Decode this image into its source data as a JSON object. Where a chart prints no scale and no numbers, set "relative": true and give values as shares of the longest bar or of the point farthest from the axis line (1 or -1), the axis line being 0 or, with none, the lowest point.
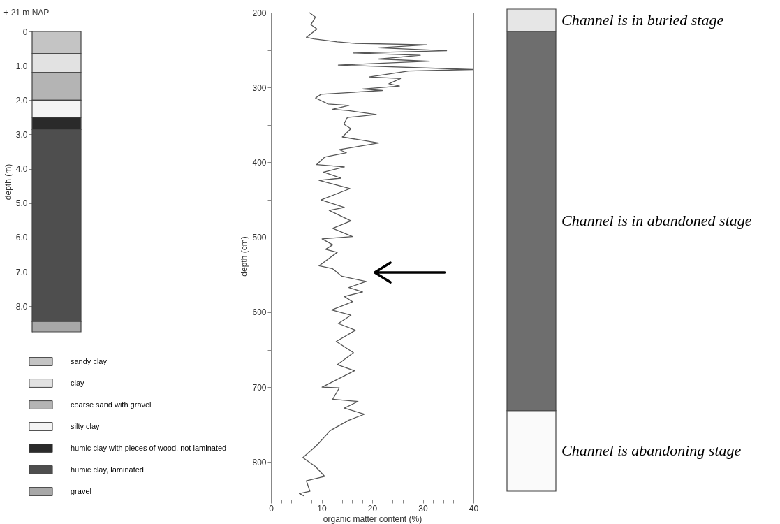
{
  "chart_data": [
    {
      "type": "bar",
      "stacked": true,
      "categories": [
        null
      ],
      "ylabel": "depth (m)",
      "annotations": [
        "+ 21 m NAP"
      ],
      "legend": "bottom",
      "tick_labels": "y",
      "ylim": [
        8.75,
        0
      ],
      "yticks": [
        0,
        {
          "value": 1,
          "label": "1.0"
        },
        {
          "value": 2,
          "label": "2.0"
        },
        {
          "value": 3,
          "label": "3.0"
        },
        {
          "value": 4,
          "label": "4.0"
        },
        {
          "value": 5,
          "label": "5.0"
        },
        {
          "value": 6,
          "label": "6.0"
        },
        {
          "value": 7,
          "label": "7.0"
        },
        {
          "value": 8,
          "label": "8.0"
        }
      ],
      "series": [
        {
          "name": "sandy clay",
          "color": "#c4c4c4",
          "values": [
            0.65
          ]
        },
        {
          "name": "clay",
          "color": "#e2e2e2",
          "values": [
            0.55
          ]
        },
        {
          "name": "coarse sand with gravel",
          "color": "#b4b4b4",
          "values": [
            0.8
          ]
        },
        {
          "name": "silty clay",
          "color": "#f4f4f4",
          "values": [
            0.5
          ]
        },
        {
          "name": "humic clay with pieces of wood, not laminated",
          "color": "#2a2a2a",
          "values": [
            0.35
          ]
        },
        {
          "name": "humic clay, laminated",
          "color": "#4e4e4e",
          "values": [
            5.6
          ]
        },
        {
          "name": "gravel",
          "color": "#a8a8a8",
          "values": [
            0.3
          ]
        }
      ]
    },
    {
      "type": "line",
      "xlabel": "organic matter content (%)",
      "ylabel": "depth (cm)",
      "xlim": [
        0,
        40
      ],
      "xticks": [
        0,
        {
          "value": 2,
          "label": null
        },
        {
          "value": 4,
          "label": null
        },
        {
          "value": 6,
          "label": null
        },
        {
          "value": 8,
          "label": null
        },
        10,
        {
          "value": 12,
          "label": null
        },
        {
          "value": 14,
          "label": null
        },
        {
          "value": 16,
          "label": null
        },
        {
          "value": 18,
          "label": null
        },
        20,
        {
          "value": 22,
          "label": null
        },
        {
          "value": 24,
          "label": null
        },
        {
          "value": 26,
          "label": null
        },
        {
          "value": 28,
          "label": null
        },
        30,
        {
          "value": 32,
          "label": null
        },
        {
          "value": 34,
          "label": null
        },
        {
          "value": 36,
          "label": null
        },
        {
          "value": 38,
          "label": null
        },
        40
      ],
      "ylim": [
        850,
        200
      ],
      "yticks": [
        200,
        {
          "value": 250,
          "label": null
        },
        300,
        {
          "value": 350,
          "label": null
        },
        400,
        {
          "value": 450,
          "label": null
        },
        500,
        {
          "value": 550,
          "label": null
        },
        600,
        {
          "value": 650,
          "label": null
        },
        700,
        {
          "value": 750,
          "label": null
        },
        800
      ],
      "series": [
        {
          "color": "#555555",
          "x": [
            7.6,
            8.8,
            7.9,
            9.1,
            7.0,
            8.5,
            13.1,
            16.3,
            30.8,
            21.3,
            34.7,
            16.3,
            29.5,
            21.3,
            31.3,
            13.3,
            39.9,
            27.2,
            19.4,
            25.6,
            23.3,
            25.4,
            18.1,
            22.0,
            9.9,
            8.8,
            11.3,
            15.4,
            12.2,
            15.4,
            20.8,
            15.1,
            14.4,
            15.8,
            14.1,
            21.3,
            13.5,
            14.9,
            10.6,
            9.0,
            14.5,
            10.4,
            13.8,
            9.5,
            15.6,
            9.9,
            14.5,
            11.5,
            15.8,
            12.2,
            16.1,
            10.1,
            12.2,
            10.8,
            13.1,
            9.5,
            12.2,
            14.0,
            18.8,
            15.4,
            18.1,
            14.5,
            16.1,
            12.0,
            15.8,
            13.3,
            16.7,
            12.9,
            16.3,
            13.1,
            16.5,
            10.1,
            13.5,
            12.2,
            17.2,
            14.5,
            18.5,
            15.4,
            11.7,
            9.0,
            6.3,
            8.8,
            10.6,
            7.0,
            7.7,
            5.6,
            6.5
          ],
          "values": [
            200,
            206,
            216,
            222,
            233,
            235,
            239,
            241,
            243,
            247,
            251,
            254,
            257,
            262,
            265,
            270,
            276,
            278,
            286,
            288,
            295,
            298,
            302,
            304,
            309,
            314,
            322,
            324,
            329,
            331,
            336,
            340,
            349,
            355,
            366,
            374,
            383,
            387,
            393,
            403,
            406,
            413,
            421,
            424,
            435,
            450,
            460,
            464,
            478,
            488,
            499,
            502,
            510,
            516,
            520,
            538,
            542,
            552,
            559,
            567,
            573,
            579,
            586,
            597,
            604,
            615,
            624,
            639,
            654,
            670,
            678,
            700,
            701,
            716,
            719,
            728,
            736,
            744,
            758,
            778,
            794,
            806,
            819,
            825,
            839,
            842,
            845
          ]
        }
      ]
    },
    {
      "type": "bar",
      "stacked": true,
      "relative": true,
      "categories": [
        null
      ],
      "tick_labels": false,
      "series": [
        {
          "name": "Channel is abandoning stage",
          "color": "#fafafa",
          "values": [
            0.167
          ]
        },
        {
          "name": "Channel is in abandoned stage",
          "color": "#6e6e6e",
          "values": [
            0.787
          ]
        },
        {
          "name": "Channel is in buried stage",
          "color": "#e6e6e6",
          "values": [
            0.046
          ]
        }
      ]
    }
  ]
}
